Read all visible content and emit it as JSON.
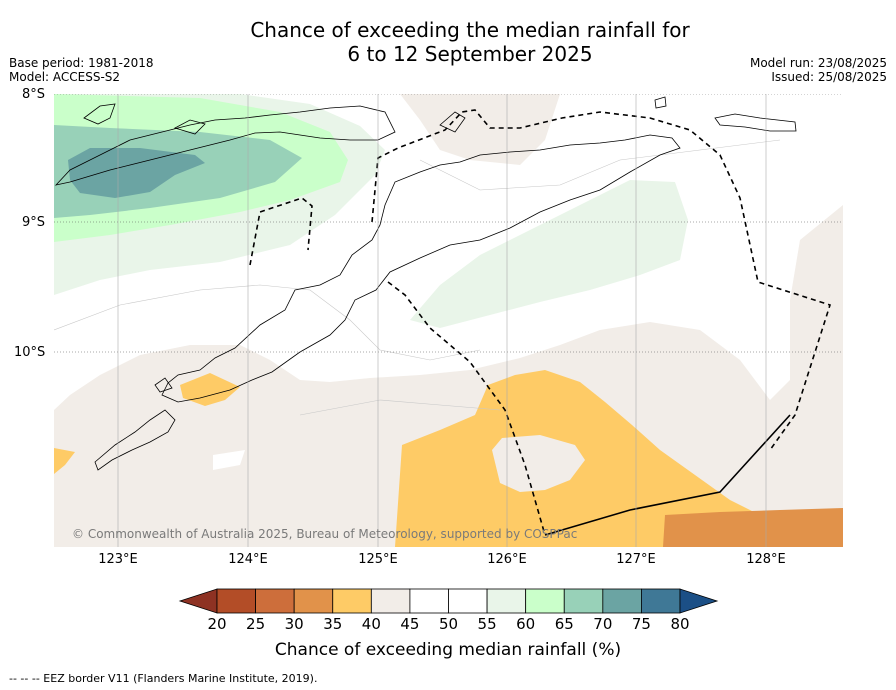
{
  "title": {
    "line1": "Chance of exceeding the median rainfall for",
    "line2": "6 to 12 September 2025"
  },
  "meta": {
    "base_period": "Base period: 1981-2018",
    "model": "Model: ACCESS-S2",
    "model_run": "Model run: 23/08/2025",
    "issued": "Issued: 25/08/2025"
  },
  "map": {
    "lat_labels": [
      "8°S",
      "9°S",
      "10°S"
    ],
    "lon_labels": [
      "123°E",
      "124°E",
      "125°E",
      "126°E",
      "127°E",
      "128°E"
    ],
    "copyright": "© Commonwealth of Australia 2025, Bureau of Meteorology, supported by COSPPac",
    "region_icon": "timor-sea-map"
  },
  "colorbar": {
    "ticks": [
      "20",
      "25",
      "30",
      "35",
      "40",
      "45",
      "50",
      "55",
      "60",
      "65",
      "70",
      "75",
      "80"
    ],
    "colors": [
      "#b34d27",
      "#cd6e3b",
      "#e1924a",
      "#fecb66",
      "#f2ede8",
      "#ffffff",
      "#ffffff",
      "#e9f5e9",
      "#caffca",
      "#98d1b8",
      "#6ba4a3",
      "#3f7896"
    ],
    "under_color": "#8e3223",
    "over_color": "#1b4f86",
    "label": "Chance of exceeding median rainfall (%)"
  },
  "footnote": "--  --  -- EEZ border V11 (Flanders Marine Institute, 2019)."
}
